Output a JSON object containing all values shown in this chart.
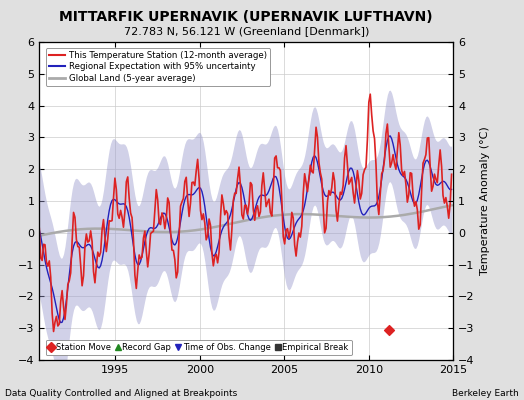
{
  "title": "MITTARFIK UPERNAVIK (UPERNAVIK LUFTHAVN)",
  "subtitle": "72.783 N, 56.121 W (Greenland [Denmark])",
  "xlim": [
    1990.5,
    2015.0
  ],
  "ylim": [
    -4,
    6
  ],
  "yticks": [
    -4,
    -3,
    -2,
    -1,
    0,
    1,
    2,
    3,
    4,
    5,
    6
  ],
  "xticks": [
    1995,
    2000,
    2005,
    2010,
    2015
  ],
  "ylabel": "Temperature Anomaly (°C)",
  "footer_left": "Data Quality Controlled and Aligned at Breakpoints",
  "footer_right": "Berkeley Earth",
  "station_move_x": 2011.2,
  "station_move_y": -3.05,
  "bg_color": "#e0e0e0",
  "plot_bg_color": "#ffffff",
  "uncertainty_color": "#9999cc",
  "uncertainty_alpha": 0.45,
  "red_color": "#dd2222",
  "blue_color": "#2222bb",
  "gray_color": "#aaaaaa"
}
